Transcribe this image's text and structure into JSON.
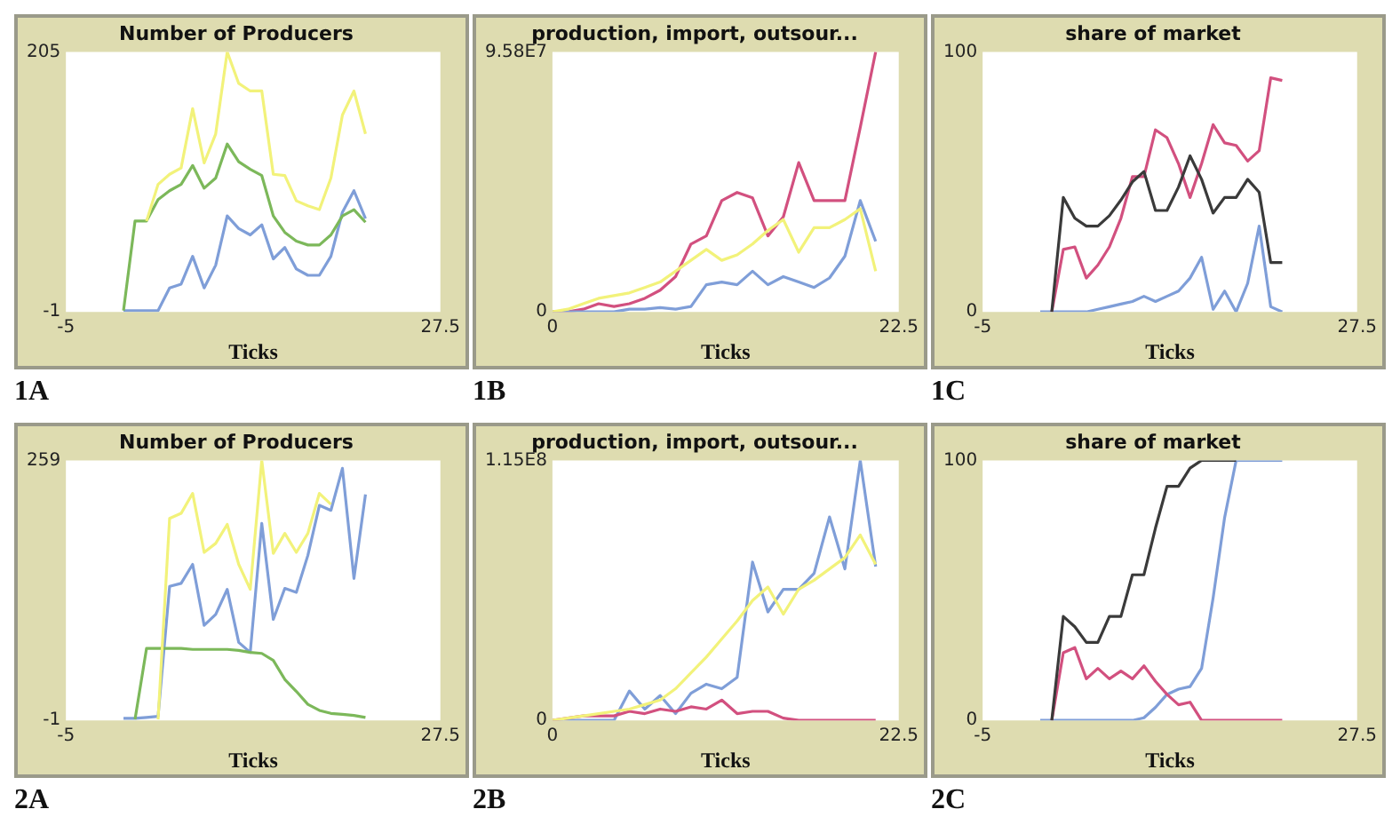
{
  "chart_data": [
    {
      "type": "line",
      "title": "Number of Producers",
      "xlabel": "Ticks",
      "annotations": [
        "1A"
      ],
      "x": [
        0,
        1,
        2,
        3,
        4,
        5,
        6,
        7,
        8,
        9,
        10,
        11,
        12,
        13,
        14,
        15,
        16,
        17,
        18,
        19,
        20,
        21
      ],
      "xlim": [
        -5,
        27.5
      ],
      "xticks": [
        -5,
        27.5
      ],
      "ylim": [
        -1,
        205
      ],
      "yticks": [
        -1,
        205
      ],
      "series": [
        {
          "color": "#f2f27a",
          "values": [
            null,
            null,
            71,
            100,
            108,
            113,
            160,
            117,
            140,
            205,
            180,
            174,
            174,
            108,
            107,
            87,
            83,
            80,
            105,
            155,
            174,
            140
          ]
        },
        {
          "color": "#7cb85a",
          "values": [
            0,
            71,
            71,
            88,
            95,
            100,
            115,
            97,
            105,
            132,
            118,
            112,
            107,
            75,
            62,
            55,
            52,
            52,
            60,
            75,
            80,
            70
          ]
        },
        {
          "color": "#7f9ed8",
          "values": [
            0,
            0,
            0,
            0,
            18,
            21,
            43,
            18,
            36,
            75,
            65,
            60,
            68,
            41,
            50,
            33,
            28,
            28,
            43,
            78,
            95,
            73
          ]
        }
      ]
    },
    {
      "type": "line",
      "title": "production, import, outsour...",
      "xlabel": "Ticks",
      "annotations": [
        "1B"
      ],
      "x": [
        0,
        1,
        2,
        3,
        4,
        5,
        6,
        7,
        8,
        9,
        10,
        11,
        12,
        13,
        14,
        15,
        16,
        17,
        18,
        19,
        20,
        21
      ],
      "xlim": [
        0,
        22.5
      ],
      "xticks": [
        0,
        22.5
      ],
      "ylim": [
        0,
        95800000
      ],
      "yticks": [
        0,
        {
          "value": 95800000,
          "label": "9.58E7"
        }
      ],
      "series": [
        {
          "color": "#f2f27a",
          "values": [
            0,
            1000000,
            3000000,
            5000000,
            6000000,
            7000000,
            9000000,
            11000000,
            15000000,
            19000000,
            23000000,
            19000000,
            21000000,
            25000000,
            30000000,
            34000000,
            22000000,
            31000000,
            31000000,
            34000000,
            38000000,
            15000000
          ]
        },
        {
          "color": "#7f9ed8",
          "values": [
            0,
            0,
            0,
            0,
            0,
            1000000,
            1000000,
            1600000,
            1000000,
            2000000,
            10000000,
            11000000,
            10000000,
            15000000,
            10000000,
            13000000,
            11000000,
            9000000,
            12500000,
            20500000,
            41000000,
            26000000
          ]
        },
        {
          "color": "#d2507f",
          "values": [
            0,
            0,
            1000000,
            3000000,
            2000000,
            3000000,
            5000000,
            8000000,
            13000000,
            25000000,
            28000000,
            41000000,
            44000000,
            42000000,
            28000000,
            35000000,
            55000000,
            41000000,
            41000000,
            41000000,
            68000000,
            95800000
          ]
        }
      ]
    },
    {
      "type": "line",
      "title": "share of market",
      "xlabel": "Ticks",
      "annotations": [
        "1C"
      ],
      "x": [
        0,
        1,
        2,
        3,
        4,
        5,
        6,
        7,
        8,
        9,
        10,
        11,
        12,
        13,
        14,
        15,
        16,
        17,
        18,
        19,
        20,
        21
      ],
      "xlim": [
        -5,
        27.5
      ],
      "xticks": [
        -5,
        27.5
      ],
      "ylim": [
        0,
        100
      ],
      "yticks": [
        0,
        100
      ],
      "series": [
        {
          "color": "#3a3a3a",
          "values": [
            null,
            0,
            44,
            36,
            33,
            33,
            37,
            43,
            50,
            54,
            39,
            39,
            48,
            60,
            51,
            38,
            44,
            44,
            51,
            46,
            19,
            19
          ]
        },
        {
          "color": "#d2507f",
          "values": [
            null,
            0,
            24,
            25,
            13,
            18,
            25,
            36,
            52,
            52,
            70,
            67,
            57,
            44,
            57,
            72,
            65,
            64,
            58,
            62,
            90,
            89
          ]
        },
        {
          "color": "#7f9ed8",
          "values": [
            0,
            0,
            0,
            0,
            0,
            1,
            2,
            3,
            4,
            6,
            4,
            6,
            8,
            13,
            21,
            1,
            8,
            0,
            11,
            33,
            2,
            0
          ]
        }
      ]
    },
    {
      "type": "line",
      "title": "Number of Producers",
      "xlabel": "Ticks",
      "annotations": [
        "2A"
      ],
      "x": [
        0,
        1,
        2,
        3,
        4,
        5,
        6,
        7,
        8,
        9,
        10,
        11,
        12,
        13,
        14,
        15,
        16,
        17,
        18,
        19,
        20,
        21
      ],
      "xlim": [
        -5,
        27.5
      ],
      "xticks": [
        -5,
        27.5
      ],
      "ylim": [
        -1,
        259
      ],
      "yticks": [
        -1,
        259
      ],
      "series": [
        {
          "color": "#f2f27a",
          "values": [
            null,
            null,
            null,
            0,
            201,
            206,
            226,
            167,
            176,
            195,
            155,
            130,
            259,
            166,
            186,
            167,
            186,
            226,
            215,
            null,
            null,
            null
          ]
        },
        {
          "color": "#7cb85a",
          "values": [
            null,
            0,
            71,
            71,
            71,
            71,
            70,
            70,
            70,
            70,
            69,
            67,
            66,
            59,
            40,
            28,
            15,
            9,
            6,
            5,
            4,
            2
          ]
        },
        {
          "color": "#7f9ed8",
          "values": [
            1,
            1,
            2,
            3,
            133,
            136,
            155,
            94,
            105,
            130,
            77,
            67,
            196,
            100,
            131,
            127,
            164,
            214,
            209,
            251,
            141,
            225
          ]
        }
      ]
    },
    {
      "type": "line",
      "title": "production, import, outsour...",
      "xlabel": "Ticks",
      "annotations": [
        "2B"
      ],
      "x": [
        0,
        1,
        2,
        3,
        4,
        5,
        6,
        7,
        8,
        9,
        10,
        11,
        12,
        13,
        14,
        15,
        16,
        17,
        18,
        19,
        20,
        21
      ],
      "xlim": [
        0,
        22.5
      ],
      "xticks": [
        0,
        22.5
      ],
      "ylim": [
        0,
        115000000
      ],
      "yticks": [
        0,
        {
          "value": 115000000,
          "label": "1.15E8"
        }
      ],
      "series": [
        {
          "color": "#f2f27a",
          "values": [
            0,
            1000000,
            2000000,
            3000000,
            4000000,
            5000000,
            7000000,
            9000000,
            14000000,
            21000000,
            28000000,
            36000000,
            44000000,
            53000000,
            59000000,
            47000000,
            58000000,
            62000000,
            67000000,
            72000000,
            82000000,
            69000000
          ]
        },
        {
          "color": "#d2507f",
          "values": [
            0,
            1000000,
            2000000,
            2000000,
            2000000,
            4000000,
            3000000,
            5000000,
            4000000,
            6000000,
            5000000,
            9000000,
            3000000,
            4000000,
            4000000,
            1000000,
            0,
            0,
            0,
            0,
            0,
            0
          ]
        },
        {
          "color": "#7f9ed8",
          "values": [
            0,
            0,
            0,
            0,
            0,
            13000000,
            5000000,
            11000000,
            3000000,
            12000000,
            16000000,
            14000000,
            19000000,
            70000000,
            48000000,
            58000000,
            58000000,
            65000000,
            90000000,
            67000000,
            115000000,
            68000000
          ]
        }
      ]
    },
    {
      "type": "line",
      "title": "share of market",
      "xlabel": "Ticks",
      "annotations": [
        "2C"
      ],
      "x": [
        0,
        1,
        2,
        3,
        4,
        5,
        6,
        7,
        8,
        9,
        10,
        11,
        12,
        13,
        14,
        15,
        16,
        17,
        18,
        19,
        20,
        21
      ],
      "xlim": [
        -5,
        27.5
      ],
      "xticks": [
        -5,
        27.5
      ],
      "ylim": [
        0,
        100
      ],
      "yticks": [
        0,
        100
      ],
      "series": [
        {
          "color": "#3a3a3a",
          "values": [
            null,
            0,
            40,
            36,
            30,
            30,
            40,
            40,
            56,
            56,
            74,
            90,
            90,
            97,
            100,
            100,
            100,
            100,
            null,
            null,
            null,
            null
          ]
        },
        {
          "color": "#d2507f",
          "values": [
            null,
            0,
            26,
            28,
            16,
            20,
            16,
            19,
            16,
            21,
            15,
            10,
            6,
            7,
            0,
            0,
            0,
            0,
            0,
            0,
            0,
            0
          ]
        },
        {
          "color": "#7f9ed8",
          "values": [
            0,
            0,
            0,
            0,
            0,
            0,
            0,
            0,
            0,
            1,
            5,
            10,
            12,
            13,
            20,
            47,
            78,
            100,
            100,
            100,
            100,
            100
          ]
        }
      ]
    }
  ]
}
